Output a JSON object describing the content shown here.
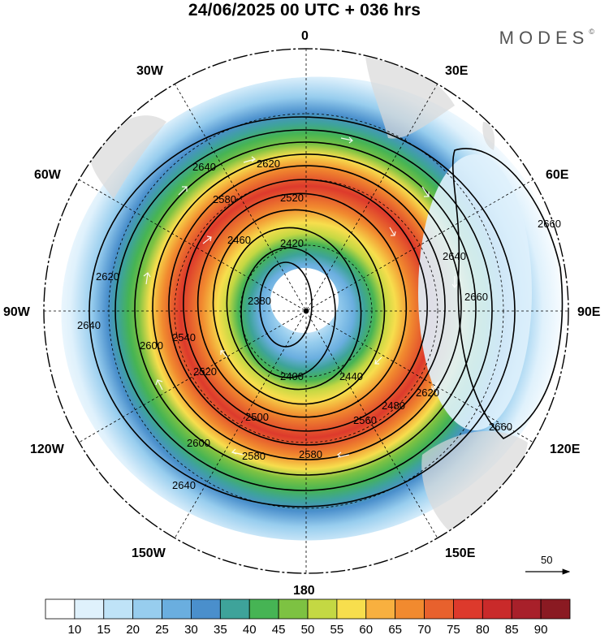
{
  "title": "24/06/2025  00 UTC  + 036 hrs",
  "logo": "MODES",
  "logo_mark": "©",
  "longitude_labels": [
    {
      "text": "0",
      "lon": 0
    },
    {
      "text": "30E",
      "lon": 30
    },
    {
      "text": "60E",
      "lon": 60
    },
    {
      "text": "90E",
      "lon": 90
    },
    {
      "text": "120E",
      "lon": 120
    },
    {
      "text": "150E",
      "lon": 150
    },
    {
      "text": "180",
      "lon": 180
    },
    {
      "text": "150W",
      "lon": -150
    },
    {
      "text": "120W",
      "lon": -120
    },
    {
      "text": "90W",
      "lon": -90
    },
    {
      "text": "60W",
      "lon": -60
    },
    {
      "text": "30W",
      "lon": -30
    }
  ],
  "contour_values": [
    "2380",
    "2400",
    "2420",
    "2440",
    "2460",
    "2480",
    "2500",
    "2520",
    "2540",
    "2560",
    "2580",
    "2600",
    "2620",
    "2640",
    "2660"
  ],
  "reference_vector": "50",
  "colorbar": {
    "ticks": [
      "10",
      "15",
      "20",
      "25",
      "30",
      "35",
      "40",
      "45",
      "50",
      "55",
      "60",
      "65",
      "70",
      "75",
      "80",
      "85",
      "90"
    ],
    "colors": [
      "#ffffff",
      "#dff1fc",
      "#bfe3f7",
      "#97cdee",
      "#6aaedf",
      "#4a8fcc",
      "#3ea39a",
      "#46b454",
      "#7dc242",
      "#c4d843",
      "#f7de4d",
      "#f8b03f",
      "#f18a2f",
      "#e8612d",
      "#dd3a2c",
      "#c92a2a",
      "#a8202a",
      "#8a1a22"
    ]
  }
}
